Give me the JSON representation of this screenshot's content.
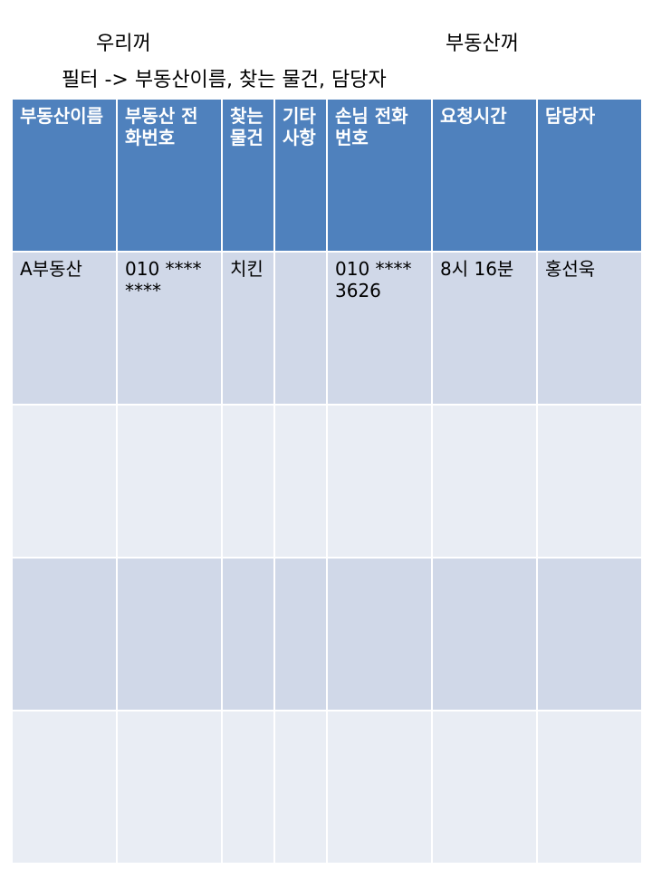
{
  "header": {
    "ours_label": "우리꺼",
    "agency_label": "부동산꺼",
    "filter_line": "필터 -> 부동산이름, 찾는 물건, 담당자"
  },
  "table": {
    "columns": [
      "부동산이름",
      "부동산 전화번호",
      "찾는물건",
      "기타사항",
      "손님 전화번호",
      "요청시간",
      "담당자"
    ],
    "rows": [
      [
        "A부동산",
        "010 **** ****",
        "치킨",
        "",
        "010 **** 3626",
        "8시 16분",
        "홍선욱"
      ],
      [
        "",
        "",
        "",
        "",
        "",
        "",
        ""
      ],
      [
        "",
        "",
        "",
        "",
        "",
        "",
        ""
      ],
      [
        "",
        "",
        "",
        "",
        "",
        "",
        ""
      ]
    ]
  },
  "colors": {
    "header_bg": "#4f81bd",
    "row_odd_bg": "#d0d8e8",
    "row_even_bg": "#e9edf4"
  }
}
